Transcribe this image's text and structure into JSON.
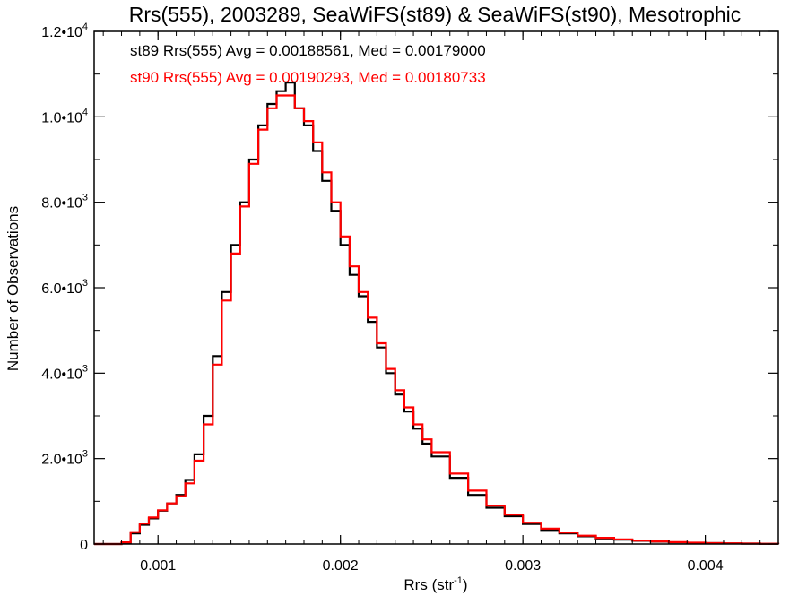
{
  "chart_data": {
    "type": "line",
    "title": "Rrs(555), 2003289, SeaWiFS(st89) & SeaWiFS(st90), Mesotrophic",
    "xlabel": "Rrs (str",
    "xlabel_sup": "-1",
    "xlabel_close": ")",
    "ylabel": "Number of Observations",
    "xlim": [
      0.00065,
      0.0044
    ],
    "ylim": [
      0,
      12000
    ],
    "x_ticks": [
      {
        "value": 0.001,
        "label": "0.001"
      },
      {
        "value": 0.002,
        "label": "0.002"
      },
      {
        "value": 0.003,
        "label": "0.003"
      },
      {
        "value": 0.004,
        "label": "0.004"
      }
    ],
    "y_ticks": [
      {
        "value": 0,
        "base": "0",
        "exp": ""
      },
      {
        "value": 2000,
        "base": "2.0•10",
        "exp": "3"
      },
      {
        "value": 4000,
        "base": "4.0•10",
        "exp": "3"
      },
      {
        "value": 6000,
        "base": "6.0•10",
        "exp": "3"
      },
      {
        "value": 8000,
        "base": "8.0•10",
        "exp": "3"
      },
      {
        "value": 10000,
        "base": "1.0•10",
        "exp": "4"
      },
      {
        "value": 12000,
        "base": "1.2•10",
        "exp": "4"
      }
    ],
    "annotations": [
      {
        "text": "st89 Rrs(555) Avg = 0.00188561, Med = 0.00179000",
        "color": "#000000"
      },
      {
        "text": "st90 Rrs(555) Avg = 0.00190293, Med = 0.00180733",
        "color": "#ff0000"
      }
    ],
    "series": [
      {
        "color": "#000000",
        "x": [
          0.00065,
          0.00075,
          0.0008,
          0.00085,
          0.0009,
          0.00095,
          0.001,
          0.00105,
          0.0011,
          0.00115,
          0.0012,
          0.00125,
          0.0013,
          0.00135,
          0.0014,
          0.00145,
          0.0015,
          0.00155,
          0.0016,
          0.00165,
          0.0017,
          0.00175,
          0.0018,
          0.00185,
          0.0019,
          0.00195,
          0.002,
          0.00205,
          0.0021,
          0.00215,
          0.0022,
          0.00225,
          0.0023,
          0.00235,
          0.0024,
          0.00245,
          0.0025,
          0.0026,
          0.0027,
          0.0028,
          0.0029,
          0.003,
          0.0031,
          0.0032,
          0.0033,
          0.0034,
          0.0035,
          0.0036,
          0.0037,
          0.0038,
          0.0039,
          0.004,
          0.0041,
          0.0042,
          0.0043,
          0.0044
        ],
        "y": [
          0,
          0,
          30,
          250,
          450,
          600,
          780,
          950,
          1150,
          1500,
          2100,
          3000,
          4400,
          5900,
          7000,
          8000,
          9000,
          9800,
          10300,
          10600,
          10800,
          10200,
          9800,
          9200,
          8500,
          7800,
          7000,
          6300,
          5800,
          5200,
          4600,
          4000,
          3500,
          3100,
          2700,
          2350,
          2050,
          1550,
          1150,
          850,
          650,
          470,
          330,
          250,
          180,
          130,
          100,
          75,
          55,
          40,
          30,
          20,
          15,
          10,
          5,
          3
        ]
      },
      {
        "color": "#ff0000",
        "x": [
          0.00065,
          0.00075,
          0.0008,
          0.00085,
          0.0009,
          0.00095,
          0.001,
          0.00105,
          0.0011,
          0.00115,
          0.0012,
          0.00125,
          0.0013,
          0.00135,
          0.0014,
          0.00145,
          0.0015,
          0.00155,
          0.0016,
          0.00165,
          0.0017,
          0.00175,
          0.0018,
          0.00185,
          0.0019,
          0.00195,
          0.002,
          0.00205,
          0.0021,
          0.00215,
          0.0022,
          0.00225,
          0.0023,
          0.00235,
          0.0024,
          0.00245,
          0.0025,
          0.0026,
          0.0027,
          0.0028,
          0.0029,
          0.003,
          0.0031,
          0.0032,
          0.0033,
          0.0034,
          0.0035,
          0.0036,
          0.0037,
          0.0038,
          0.0039,
          0.004,
          0.0041,
          0.0042,
          0.0043,
          0.0044
        ],
        "y": [
          0,
          0,
          40,
          280,
          480,
          620,
          790,
          950,
          1120,
          1420,
          1950,
          2800,
          4200,
          5700,
          6800,
          7900,
          8900,
          9700,
          10200,
          10500,
          10500,
          10200,
          9900,
          9400,
          8700,
          8000,
          7200,
          6500,
          5900,
          5300,
          4700,
          4100,
          3600,
          3200,
          2800,
          2450,
          2150,
          1650,
          1250,
          900,
          690,
          500,
          360,
          270,
          195,
          145,
          110,
          80,
          60,
          45,
          32,
          22,
          16,
          11,
          6,
          3
        ]
      }
    ]
  }
}
